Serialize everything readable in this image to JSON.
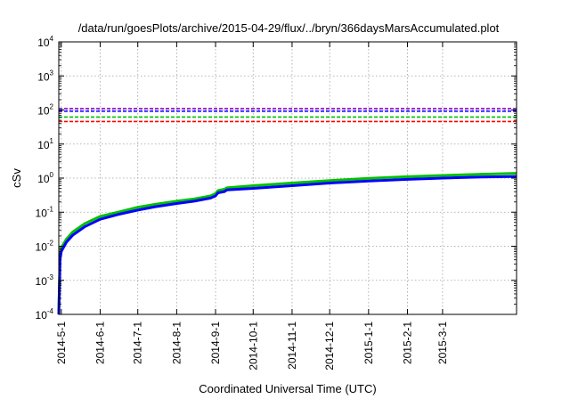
{
  "chart_data": {
    "type": "line",
    "title": "/data/run/goesPlots/archive/2015-04-29/flux/../bryn/366daysMarsAccumulated.plot",
    "xlabel": "Coordinated Universal Time (UTC)",
    "ylabel": "cSv",
    "x_range": [
      "2014-04-29",
      "2015-04-29"
    ],
    "y_scale": "log",
    "y_range": [
      0.0001,
      10000
    ],
    "grid": true,
    "legend": "none",
    "x_ticks": [
      {
        "date": "2014-05-01",
        "label": "2014-5-1"
      },
      {
        "date": "2014-06-01",
        "label": "2014-6-1"
      },
      {
        "date": "2014-07-01",
        "label": "2014-7-1"
      },
      {
        "date": "2014-08-01",
        "label": "2014-8-1"
      },
      {
        "date": "2014-09-01",
        "label": "2014-9-1"
      },
      {
        "date": "2014-10-01",
        "label": "2014-10-1"
      },
      {
        "date": "2014-11-01",
        "label": "2014-11-1"
      },
      {
        "date": "2014-12-01",
        "label": "2014-12-1"
      },
      {
        "date": "2015-01-01",
        "label": "2015-1-1"
      },
      {
        "date": "2015-02-01",
        "label": "2015-2-1"
      },
      {
        "date": "2015-03-01",
        "label": "2015-3-1"
      }
    ],
    "y_ticks": [
      {
        "value": 0.0001,
        "base": "10",
        "exp": "-4"
      },
      {
        "value": 0.001,
        "base": "10",
        "exp": "-3"
      },
      {
        "value": 0.01,
        "base": "10",
        "exp": "-2"
      },
      {
        "value": 0.1,
        "base": "10",
        "exp": "-1"
      },
      {
        "value": 1,
        "base": "10",
        "exp": "0"
      },
      {
        "value": 10,
        "base": "10",
        "exp": "1"
      },
      {
        "value": 100,
        "base": "10",
        "exp": "2"
      },
      {
        "value": 1000,
        "base": "10",
        "exp": "3"
      },
      {
        "value": 10000,
        "base": "10",
        "exp": "4"
      }
    ],
    "reference_lines": [
      {
        "value": 110,
        "color": "#9400d3"
      },
      {
        "value": 92,
        "color": "#0000ff"
      },
      {
        "value": 62,
        "color": "#00c000"
      },
      {
        "value": 46,
        "color": "#ff0000"
      }
    ],
    "series": [
      {
        "color": "#00c000",
        "points": [
          [
            "2014-04-29",
            0.0001
          ],
          [
            "2014-04-30",
            0.005
          ],
          [
            "2014-05-01",
            0.009
          ],
          [
            "2014-05-05",
            0.016
          ],
          [
            "2014-05-10",
            0.026
          ],
          [
            "2014-05-20",
            0.047
          ],
          [
            "2014-06-01",
            0.075
          ],
          [
            "2014-06-15",
            0.1
          ],
          [
            "2014-07-01",
            0.14
          ],
          [
            "2014-07-15",
            0.17
          ],
          [
            "2014-08-01",
            0.21
          ],
          [
            "2014-08-15",
            0.245
          ],
          [
            "2014-08-28",
            0.3
          ],
          [
            "2014-09-01",
            0.35
          ],
          [
            "2014-09-03",
            0.43
          ],
          [
            "2014-09-08",
            0.47
          ],
          [
            "2014-09-10",
            0.52
          ],
          [
            "2014-10-01",
            0.6
          ],
          [
            "2014-11-01",
            0.72
          ],
          [
            "2014-12-01",
            0.85
          ],
          [
            "2015-01-01",
            0.98
          ],
          [
            "2015-02-01",
            1.1
          ],
          [
            "2015-03-01",
            1.2
          ],
          [
            "2015-04-01",
            1.3
          ],
          [
            "2015-04-29",
            1.38
          ]
        ]
      },
      {
        "color": "#0000ff",
        "points": [
          [
            "2014-04-29",
            0.0001
          ],
          [
            "2014-04-30",
            0.004
          ],
          [
            "2014-05-01",
            0.007
          ],
          [
            "2014-05-05",
            0.013
          ],
          [
            "2014-05-10",
            0.021
          ],
          [
            "2014-05-20",
            0.038
          ],
          [
            "2014-06-01",
            0.062
          ],
          [
            "2014-06-15",
            0.085
          ],
          [
            "2014-07-01",
            0.115
          ],
          [
            "2014-07-15",
            0.145
          ],
          [
            "2014-08-01",
            0.18
          ],
          [
            "2014-08-15",
            0.21
          ],
          [
            "2014-08-28",
            0.26
          ],
          [
            "2014-09-01",
            0.3
          ],
          [
            "2014-09-03",
            0.37
          ],
          [
            "2014-09-08",
            0.4
          ],
          [
            "2014-09-10",
            0.45
          ],
          [
            "2014-10-01",
            0.5
          ],
          [
            "2014-11-01",
            0.6
          ],
          [
            "2014-12-01",
            0.72
          ],
          [
            "2015-01-01",
            0.82
          ],
          [
            "2015-02-01",
            0.92
          ],
          [
            "2015-03-01",
            1.0
          ],
          [
            "2015-04-01",
            1.08
          ],
          [
            "2015-04-29",
            1.12
          ]
        ]
      }
    ]
  }
}
